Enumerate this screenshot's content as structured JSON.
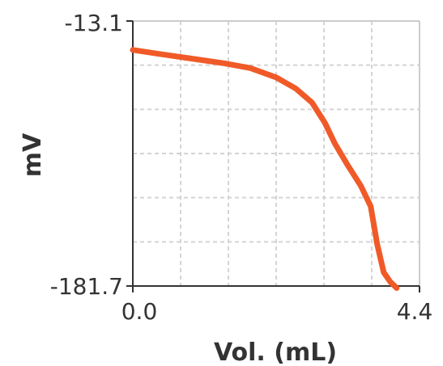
{
  "chart_data": {
    "type": "line",
    "title": "",
    "xlabel": "Vol. (mL)",
    "ylabel": "mV",
    "xlim": [
      0.0,
      4.4
    ],
    "ylim": [
      -181.7,
      -13.1
    ],
    "x_tick_labels": [
      "0.0",
      "4.4"
    ],
    "y_tick_labels": [
      "-13.1",
      "-181.7"
    ],
    "grid": true,
    "series_color": "#f05a28",
    "series": [
      {
        "x": [
          0.0,
          0.4,
          0.9,
          1.4,
          1.8,
          2.2,
          2.5,
          2.75,
          2.95,
          3.1,
          3.3,
          3.5,
          3.65,
          3.75,
          3.85,
          3.95,
          4.05
        ],
        "y": [
          -31.5,
          -34.0,
          -37.0,
          -40.0,
          -43.0,
          -49.0,
          -56.0,
          -65.0,
          -78.0,
          -91.0,
          -105.0,
          -118.0,
          -131.0,
          -155.0,
          -173.0,
          -179.0,
          -183.0
        ]
      }
    ]
  }
}
